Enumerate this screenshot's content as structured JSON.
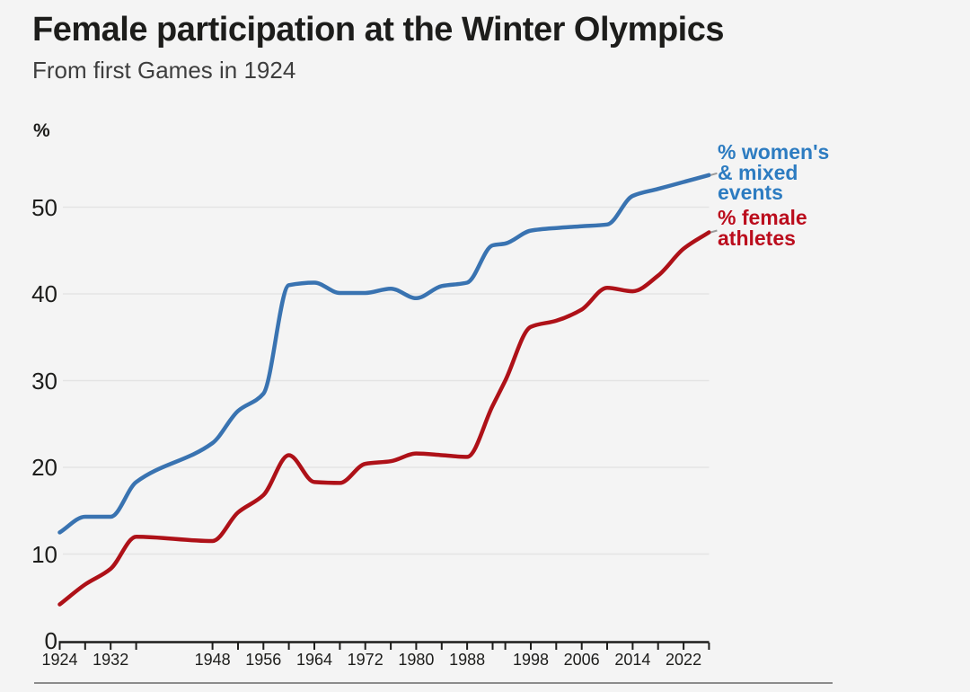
{
  "header": {
    "title": "Female participation at the Winter Olympics",
    "subtitle": "From first Games in 1924"
  },
  "axes": {
    "y_unit_label": "%",
    "y_ticks": [
      0,
      10,
      20,
      30,
      40,
      50
    ],
    "x_tick_years": [
      1924,
      1928,
      1932,
      1936,
      1948,
      1952,
      1956,
      1960,
      1964,
      1968,
      1972,
      1976,
      1980,
      1984,
      1988,
      1992,
      1994,
      1998,
      2002,
      2006,
      2010,
      2014,
      2018,
      2022,
      2026
    ],
    "x_label_years": [
      1924,
      1932,
      1948,
      1956,
      1964,
      1972,
      1980,
      1988,
      1998,
      2006,
      2014,
      2022
    ]
  },
  "legend": {
    "events": {
      "lines": [
        "% women's",
        "& mixed",
        "events"
      ],
      "color": "#2d7cc1"
    },
    "athletes": {
      "lines": [
        "% female",
        "athletes"
      ],
      "color": "#bb0d1d"
    }
  },
  "colors": {
    "background": "#f4f4f4",
    "events_line": "#3973b1",
    "athletes_line": "#ae1118",
    "gridline": "#e4e4e4",
    "axis": "#1d1d1b",
    "leader": "#9a9a9a",
    "bottom_rule": "#8c8c8c"
  },
  "chart_data": {
    "type": "line",
    "title": "Female participation at the Winter Olympics",
    "subtitle": "From first Games in 1924",
    "xlabel": "",
    "ylabel": "%",
    "xlim": [
      1924,
      2026
    ],
    "ylim": [
      0,
      57
    ],
    "grid": "horizontal",
    "legend_position": "right of line ends",
    "x": [
      1924,
      1928,
      1932,
      1936,
      1948,
      1952,
      1956,
      1960,
      1964,
      1968,
      1972,
      1976,
      1980,
      1984,
      1988,
      1992,
      1994,
      1998,
      2002,
      2006,
      2010,
      2014,
      2018,
      2022,
      2026
    ],
    "series": [
      {
        "name": "% women's & mixed events",
        "color": "#3973b1",
        "values": [
          12.5,
          14.3,
          14.3,
          18.3,
          22.8,
          26.5,
          28.5,
          41.0,
          41.3,
          40.1,
          40.1,
          40.6,
          39.5,
          40.9,
          41.3,
          45.6,
          45.8,
          47.3,
          47.6,
          47.8,
          48.0,
          51.3,
          52.1,
          52.9,
          53.7
        ]
      },
      {
        "name": "% female athletes",
        "color": "#ae1118",
        "values": [
          4.2,
          6.5,
          8.3,
          12.0,
          11.5,
          14.8,
          16.8,
          21.4,
          18.3,
          18.2,
          20.4,
          20.7,
          21.6,
          21.4,
          21.2,
          27.1,
          30.0,
          36.2,
          36.9,
          38.2,
          40.7,
          40.3,
          42.1,
          45.2,
          47.1
        ]
      }
    ]
  }
}
